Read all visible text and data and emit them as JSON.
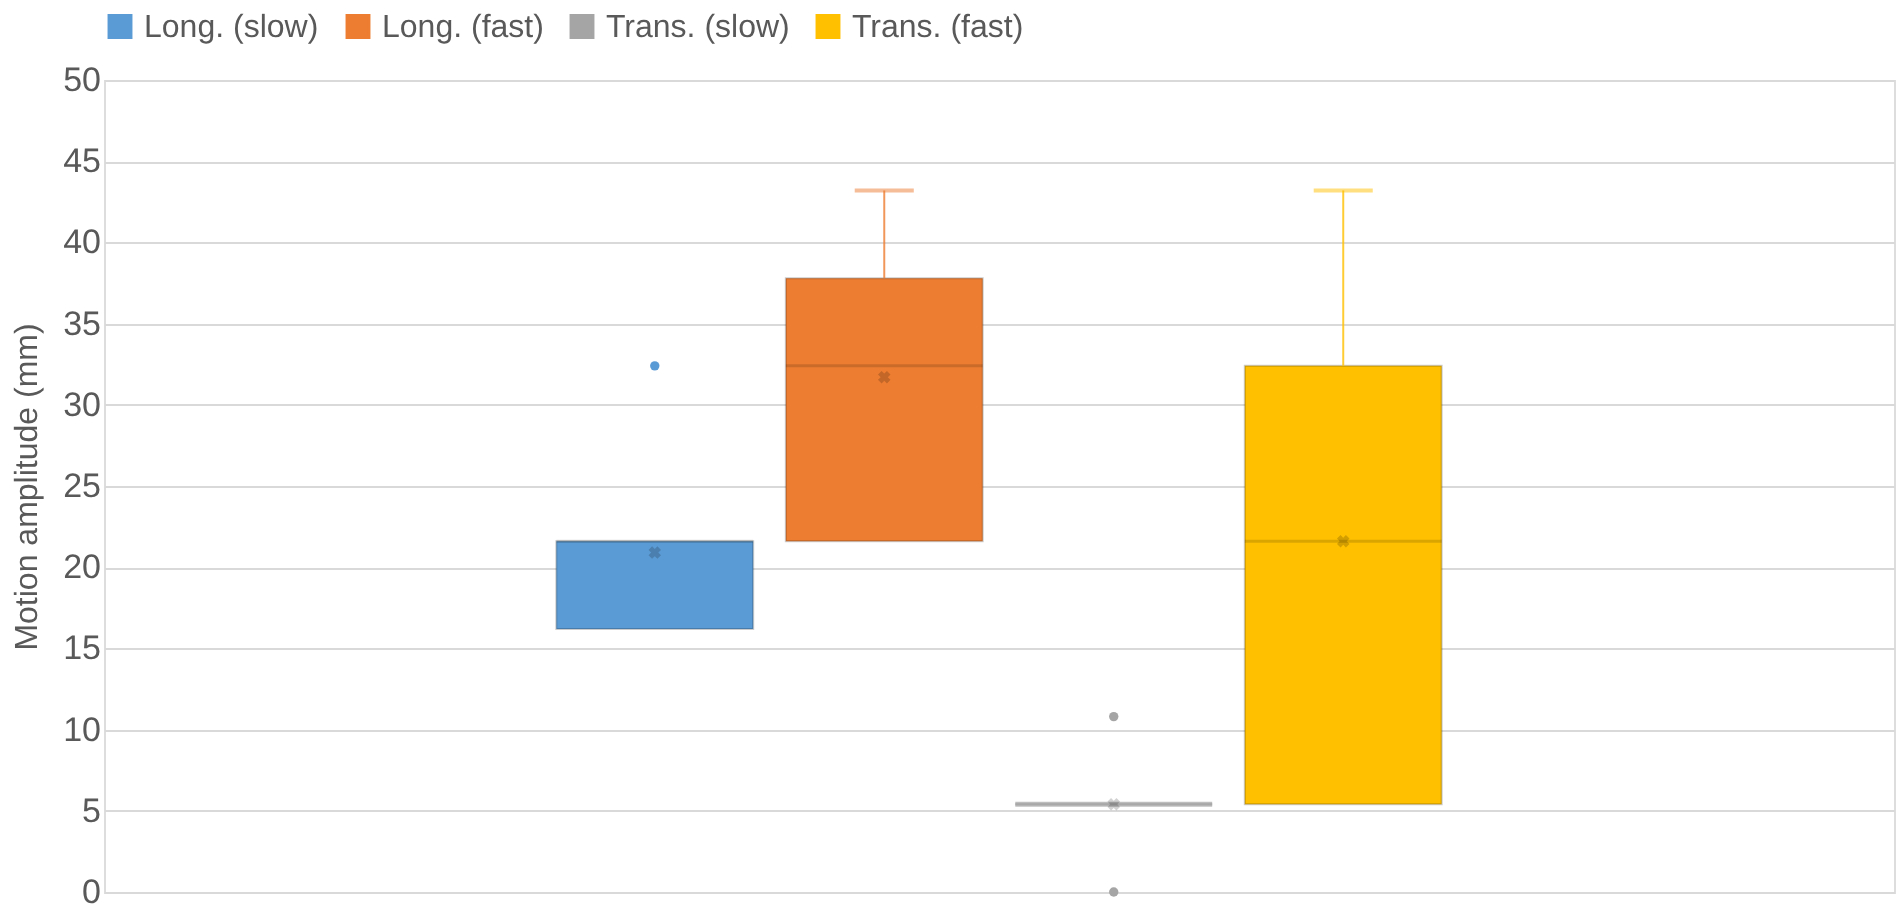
{
  "chart_data": {
    "type": "box",
    "ylabel": "Motion amplitude (mm)",
    "categories": [
      null
    ],
    "series": [
      {
        "name": "Long. (slow)",
        "color": "#5b9bd5",
        "boxes": [
          {
            "low": 16.2,
            "q1": 16.2,
            "median": 21.6,
            "q3": 21.6,
            "high": 21.6,
            "mean": 20.9,
            "outliers": [
              32.4
            ]
          }
        ]
      },
      {
        "name": "Long. (fast)",
        "color": "#ed7d31",
        "boxes": [
          {
            "low": 21.6,
            "q1": 21.6,
            "median": 32.4,
            "q3": 37.8,
            "high": 43.2,
            "mean": 31.7
          }
        ]
      },
      {
        "name": "Trans. (slow)",
        "color": "#a5a5a5",
        "boxes": [
          {
            "low": 5.4,
            "q1": 5.4,
            "median": 5.4,
            "q3": 5.4,
            "high": 5.4,
            "mean": 5.4,
            "outliers": [
              10.8,
              0
            ]
          }
        ]
      },
      {
        "name": "Trans. (fast)",
        "color": "#ffc000",
        "boxes": [
          {
            "low": 5.4,
            "q1": 5.4,
            "median": 21.6,
            "q3": 32.4,
            "high": 43.2,
            "mean": 21.6
          }
        ]
      }
    ],
    "ylim": [
      0,
      50
    ],
    "yticks": [
      0,
      5,
      10,
      15,
      20,
      25,
      30,
      35,
      40,
      45,
      50
    ],
    "grid": "y",
    "legend": "top",
    "tick_labels": "y"
  }
}
